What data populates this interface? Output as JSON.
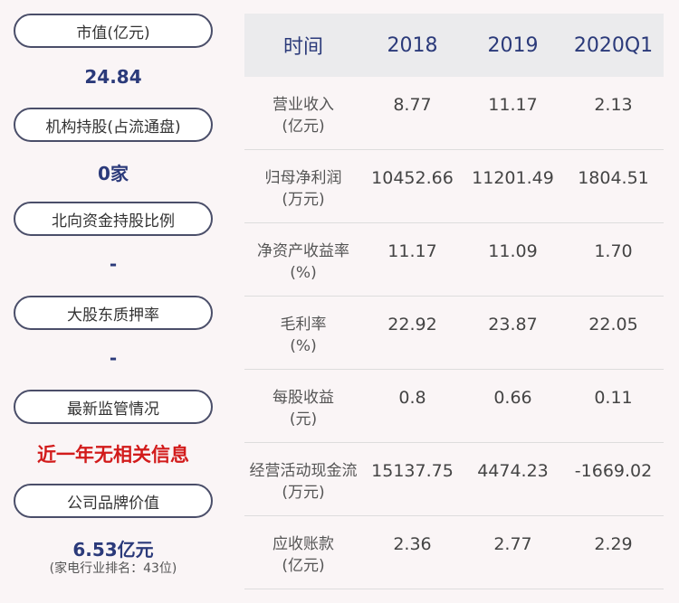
{
  "left": {
    "items": [
      {
        "label": "市值(亿元)",
        "value": "24.84"
      },
      {
        "label": "机构持股(占流通盘)",
        "value": "0家"
      },
      {
        "label": "北向资金持股比例",
        "value": "-"
      },
      {
        "label": "大股东质押率",
        "value": "-"
      },
      {
        "label": "最新监管情况",
        "value": "近一年无相关信息"
      },
      {
        "label": "公司品牌价值",
        "value": "6.53亿元",
        "note": "(家电行业排名：43位)"
      }
    ],
    "accent_color": "#2b3a7a",
    "alert_color": "#d21b1b"
  },
  "table": {
    "headers": [
      "时间",
      "2018",
      "2019",
      "2020Q1"
    ],
    "rows": [
      {
        "name": "营业收入",
        "unit": "(亿元)",
        "values": [
          "8.77",
          "11.17",
          "2.13"
        ]
      },
      {
        "name": "归母净利润",
        "unit": "(万元)",
        "values": [
          "10452.66",
          "11201.49",
          "1804.51"
        ]
      },
      {
        "name": "净资产收益率",
        "unit": "(%)",
        "values": [
          "11.17",
          "11.09",
          "1.70"
        ]
      },
      {
        "name": "毛利率",
        "unit": "(%)",
        "values": [
          "22.92",
          "23.87",
          "22.05"
        ]
      },
      {
        "name": "每股收益",
        "unit": "(元)",
        "values": [
          "0.8",
          "0.66",
          "0.11"
        ]
      },
      {
        "name": "经营活动现金流",
        "unit": "(万元)",
        "values": [
          "15137.75",
          "4474.23",
          "-1669.02"
        ]
      },
      {
        "name": "应收账款",
        "unit": "(亿元)",
        "values": [
          "2.36",
          "2.77",
          "2.29"
        ]
      }
    ]
  }
}
